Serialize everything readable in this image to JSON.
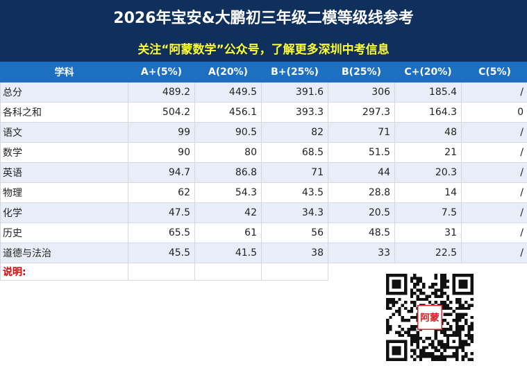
{
  "header": {
    "title": "2026年宝安&大鹏初三年级二模等级线参考",
    "subtitle": "关注“阿蒙数学”公众号，了解更多深圳中考信息"
  },
  "table": {
    "columns": [
      "学科",
      "A+(5%)",
      "A(20%)",
      "B+(25%)",
      "B(25%)",
      "C+(20%)",
      "C(5%)"
    ],
    "rows": [
      [
        "总分",
        "489.2",
        "449.5",
        "391.6",
        "306",
        "185.4",
        "/"
      ],
      [
        "各科之和",
        "504.2",
        "456.1",
        "393.3",
        "297.3",
        "164.3",
        "0"
      ],
      [
        "语文",
        "99",
        "90.5",
        "82",
        "71",
        "48",
        "/"
      ],
      [
        "数学",
        "90",
        "80",
        "68.5",
        "51.5",
        "21",
        "/"
      ],
      [
        "英语",
        "94.7",
        "86.8",
        "71",
        "44",
        "20.3",
        "/"
      ],
      [
        "物理",
        "62",
        "54.3",
        "43.5",
        "28.8",
        "14",
        "/"
      ],
      [
        "化学",
        "47.5",
        "42",
        "34.3",
        "20.5",
        "7.5",
        "/"
      ],
      [
        "历史",
        "65.5",
        "61",
        "56",
        "48.5",
        "31",
        "/"
      ],
      [
        "道德与法治",
        "45.5",
        "41.5",
        "38",
        "33",
        "22.5",
        "/"
      ]
    ],
    "note_label": "说明:"
  },
  "qr": {
    "center_text": "阿蒙",
    "icon": "qr-code-icon",
    "accent_color": "#d9232a"
  }
}
